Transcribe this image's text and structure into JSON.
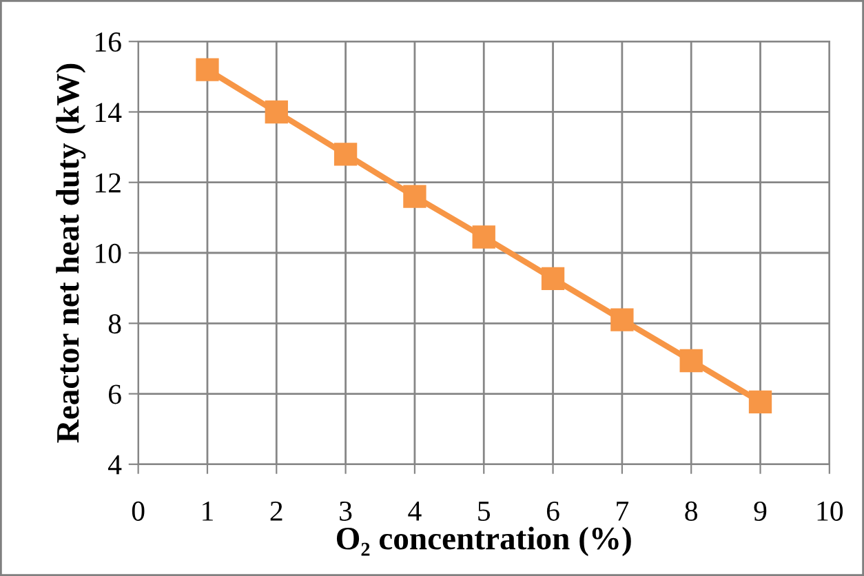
{
  "chart_data": {
    "type": "line",
    "xlabel": "O₂ concentration (%)",
    "ylabel": "Reactor net heat duty (kW)",
    "x": [
      1,
      2,
      3,
      4,
      5,
      6,
      7,
      8,
      9
    ],
    "series": [
      {
        "color": "#f79646",
        "values": [
          15.2,
          14.0,
          12.8,
          11.6,
          10.45,
          9.27,
          8.1,
          6.94,
          5.77
        ]
      }
    ],
    "xlim": [
      0,
      10
    ],
    "xticks": [
      0,
      1,
      2,
      3,
      4,
      5,
      6,
      7,
      8,
      9,
      10
    ],
    "ylim": [
      4,
      16
    ],
    "yticks": [
      4,
      6,
      8,
      10,
      12,
      14,
      16
    ],
    "grid": true,
    "marker": "square",
    "line_style": "solid"
  }
}
